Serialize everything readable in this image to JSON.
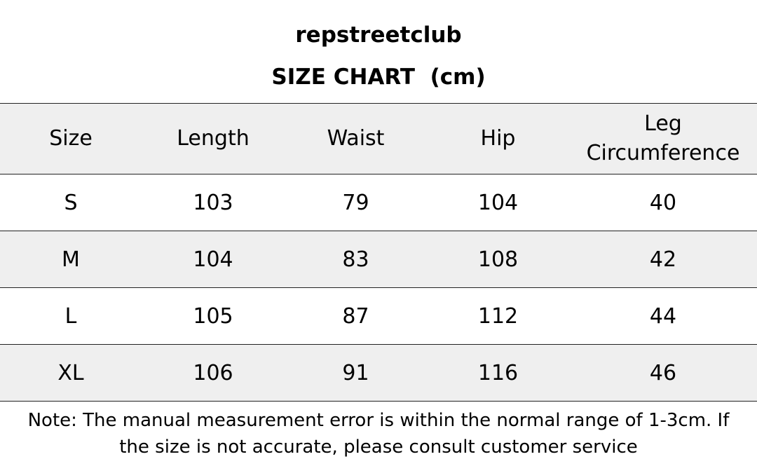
{
  "brand": "repstreetclub",
  "title": "SIZE CHART  (cm)",
  "table": {
    "headers": {
      "size": "Size",
      "length": "Length",
      "waist": "Waist",
      "hip": "Hip",
      "leg_line1": "Leg",
      "leg_line2": "Circumference"
    },
    "rows": [
      {
        "size": "S",
        "length": "103",
        "waist": "79",
        "hip": "104",
        "leg": "40"
      },
      {
        "size": "M",
        "length": "104",
        "waist": "83",
        "hip": "108",
        "leg": "42"
      },
      {
        "size": "L",
        "length": "105",
        "waist": "87",
        "hip": "112",
        "leg": "44"
      },
      {
        "size": "XL",
        "length": "106",
        "waist": "91",
        "hip": "116",
        "leg": "46"
      }
    ]
  },
  "note": {
    "line1": "Note: The manual measurement error is within the normal range of 1-3cm. If",
    "line2": "the size is not accurate, please consult customer service"
  }
}
